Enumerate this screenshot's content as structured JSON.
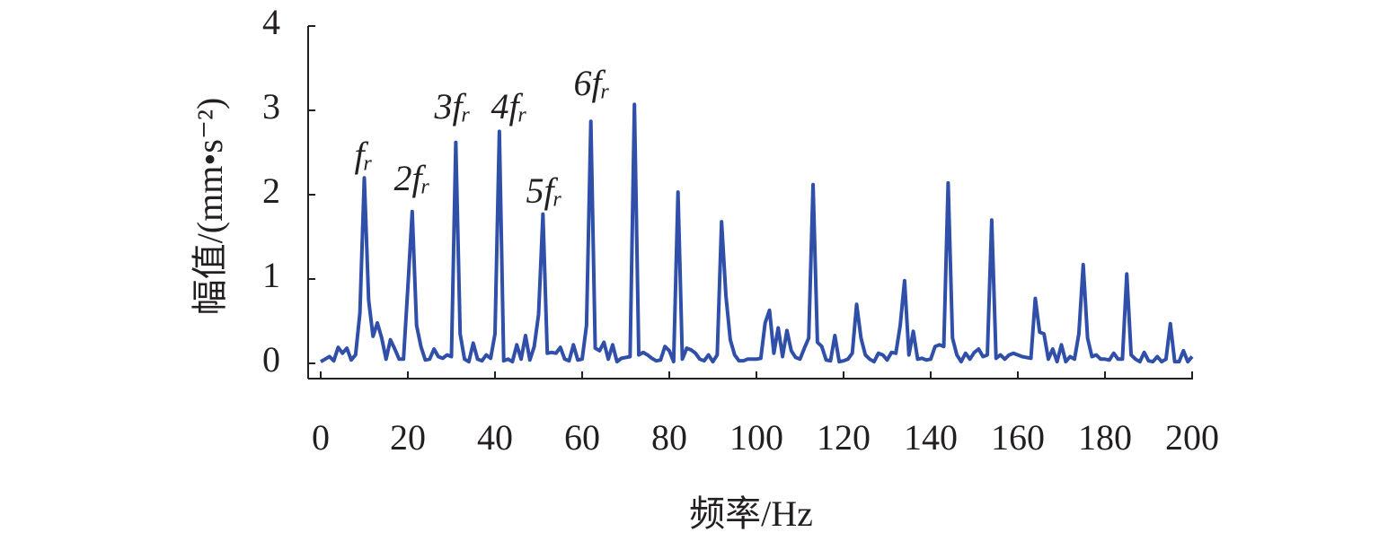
{
  "chart_data": {
    "type": "line",
    "xlabel": "频率/Hz",
    "ylabel": "幅值/(mm•s⁻²)",
    "annotations": [
      "fᵣ",
      "2fᵣ",
      "3fᵣ",
      "4fᵣ",
      "5fᵣ",
      "6fᵣ"
    ],
    "xlim": [
      0,
      200
    ],
    "ylim": [
      0,
      4
    ],
    "xticks": [
      0,
      20,
      40,
      60,
      80,
      100,
      120,
      140,
      160,
      180,
      200
    ],
    "yticks": [
      0,
      1,
      2,
      3,
      4
    ],
    "series": [
      {
        "color": "#2f4fa8",
        "x": [
          0,
          1,
          2,
          3,
          4,
          5,
          6,
          7,
          8,
          9,
          10,
          11,
          12,
          13,
          14,
          15,
          16,
          17,
          18,
          19,
          20,
          21,
          22,
          23,
          24,
          25,
          26,
          27,
          28,
          29,
          30,
          31,
          32,
          33,
          34,
          35,
          36,
          37,
          38,
          39,
          40,
          41,
          42,
          43,
          44,
          45,
          46,
          47,
          48,
          49,
          50,
          51,
          52,
          53,
          54,
          55,
          56,
          57,
          58,
          59,
          60,
          61,
          62,
          63,
          64,
          65,
          66,
          67,
          68,
          69,
          70,
          71,
          72,
          73,
          74,
          75,
          76,
          77,
          78,
          79,
          80,
          81,
          82,
          83,
          84,
          85,
          86,
          87,
          88,
          89,
          90,
          91,
          92,
          93,
          94,
          95,
          96,
          97,
          98,
          99,
          100,
          101,
          102,
          103,
          104,
          105,
          106,
          107,
          108,
          109,
          110,
          111,
          112,
          113,
          114,
          115,
          116,
          117,
          118,
          119,
          120,
          121,
          122,
          123,
          124,
          125,
          126,
          127,
          128,
          129,
          130,
          131,
          132,
          133,
          134,
          135,
          136,
          137,
          138,
          139,
          140,
          141,
          142,
          143,
          144,
          145,
          146,
          147,
          148,
          149,
          150,
          151,
          152,
          153,
          154,
          155,
          156,
          157,
          158,
          159,
          160,
          161,
          162,
          163,
          164,
          165,
          166,
          167,
          168,
          169,
          170,
          171,
          172,
          173,
          174,
          175,
          176,
          177,
          178,
          179,
          180,
          181,
          182,
          183,
          184,
          185,
          186,
          187,
          188,
          189,
          190,
          191,
          192,
          193,
          194,
          195,
          196,
          197,
          198,
          199,
          200
        ],
        "values": [
          0.02,
          0.05,
          0.08,
          0.03,
          0.19,
          0.12,
          0.18,
          0.04,
          0.1,
          0.6,
          2.2,
          0.75,
          0.32,
          0.48,
          0.3,
          0.05,
          0.28,
          0.17,
          0.05,
          0.05,
          0.9,
          1.8,
          0.45,
          0.2,
          0.04,
          0.05,
          0.17,
          0.08,
          0.06,
          0.1,
          0.08,
          2.62,
          0.35,
          0.05,
          0.02,
          0.24,
          0.05,
          0.03,
          0.1,
          0.06,
          0.35,
          2.75,
          0.03,
          0.05,
          0.02,
          0.22,
          0.05,
          0.33,
          0.04,
          0.2,
          0.58,
          1.77,
          0.12,
          0.13,
          0.12,
          0.19,
          0.05,
          0.03,
          0.22,
          0.04,
          0.05,
          0.45,
          2.87,
          0.18,
          0.15,
          0.25,
          0.05,
          0.22,
          0.02,
          0.06,
          0.07,
          0.08,
          3.07,
          0.1,
          0.13,
          0.1,
          0.06,
          0.03,
          0.04,
          0.2,
          0.15,
          0.02,
          2.03,
          0.05,
          0.18,
          0.16,
          0.12,
          0.05,
          0.03,
          0.1,
          0.02,
          0.1,
          1.68,
          0.8,
          0.28,
          0.1,
          0.03,
          0.03,
          0.05,
          0.05,
          0.05,
          0.06,
          0.48,
          0.63,
          0.12,
          0.42,
          0.08,
          0.39,
          0.15,
          0.07,
          0.05,
          0.18,
          0.3,
          2.12,
          0.25,
          0.2,
          0.04,
          0.03,
          0.33,
          0.02,
          0.03,
          0.05,
          0.12,
          0.7,
          0.3,
          0.1,
          0.05,
          0.02,
          0.12,
          0.1,
          0.04,
          0.13,
          0.12,
          0.45,
          0.98,
          0.1,
          0.38,
          0.05,
          0.06,
          0.04,
          0.05,
          0.2,
          0.22,
          0.2,
          2.14,
          0.3,
          0.1,
          0.02,
          0.12,
          0.05,
          0.13,
          0.17,
          0.08,
          0.1,
          1.7,
          0.06,
          0.1,
          0.05,
          0.1,
          0.12,
          0.1,
          0.08,
          0.07,
          0.06,
          0.77,
          0.37,
          0.35,
          0.05,
          0.17,
          0.02,
          0.22,
          0.02,
          0.08,
          0.05,
          0.35,
          1.17,
          0.3,
          0.08,
          0.1,
          0.05,
          0.05,
          0.04,
          0.12,
          0.05,
          0.05,
          1.06,
          0.1,
          0.05,
          0.02,
          0.13,
          0.03,
          0.02,
          0.08,
          0.02,
          0.05,
          0.47,
          0.02,
          0.02,
          0.15,
          0.02,
          0.08
        ]
      }
    ]
  }
}
